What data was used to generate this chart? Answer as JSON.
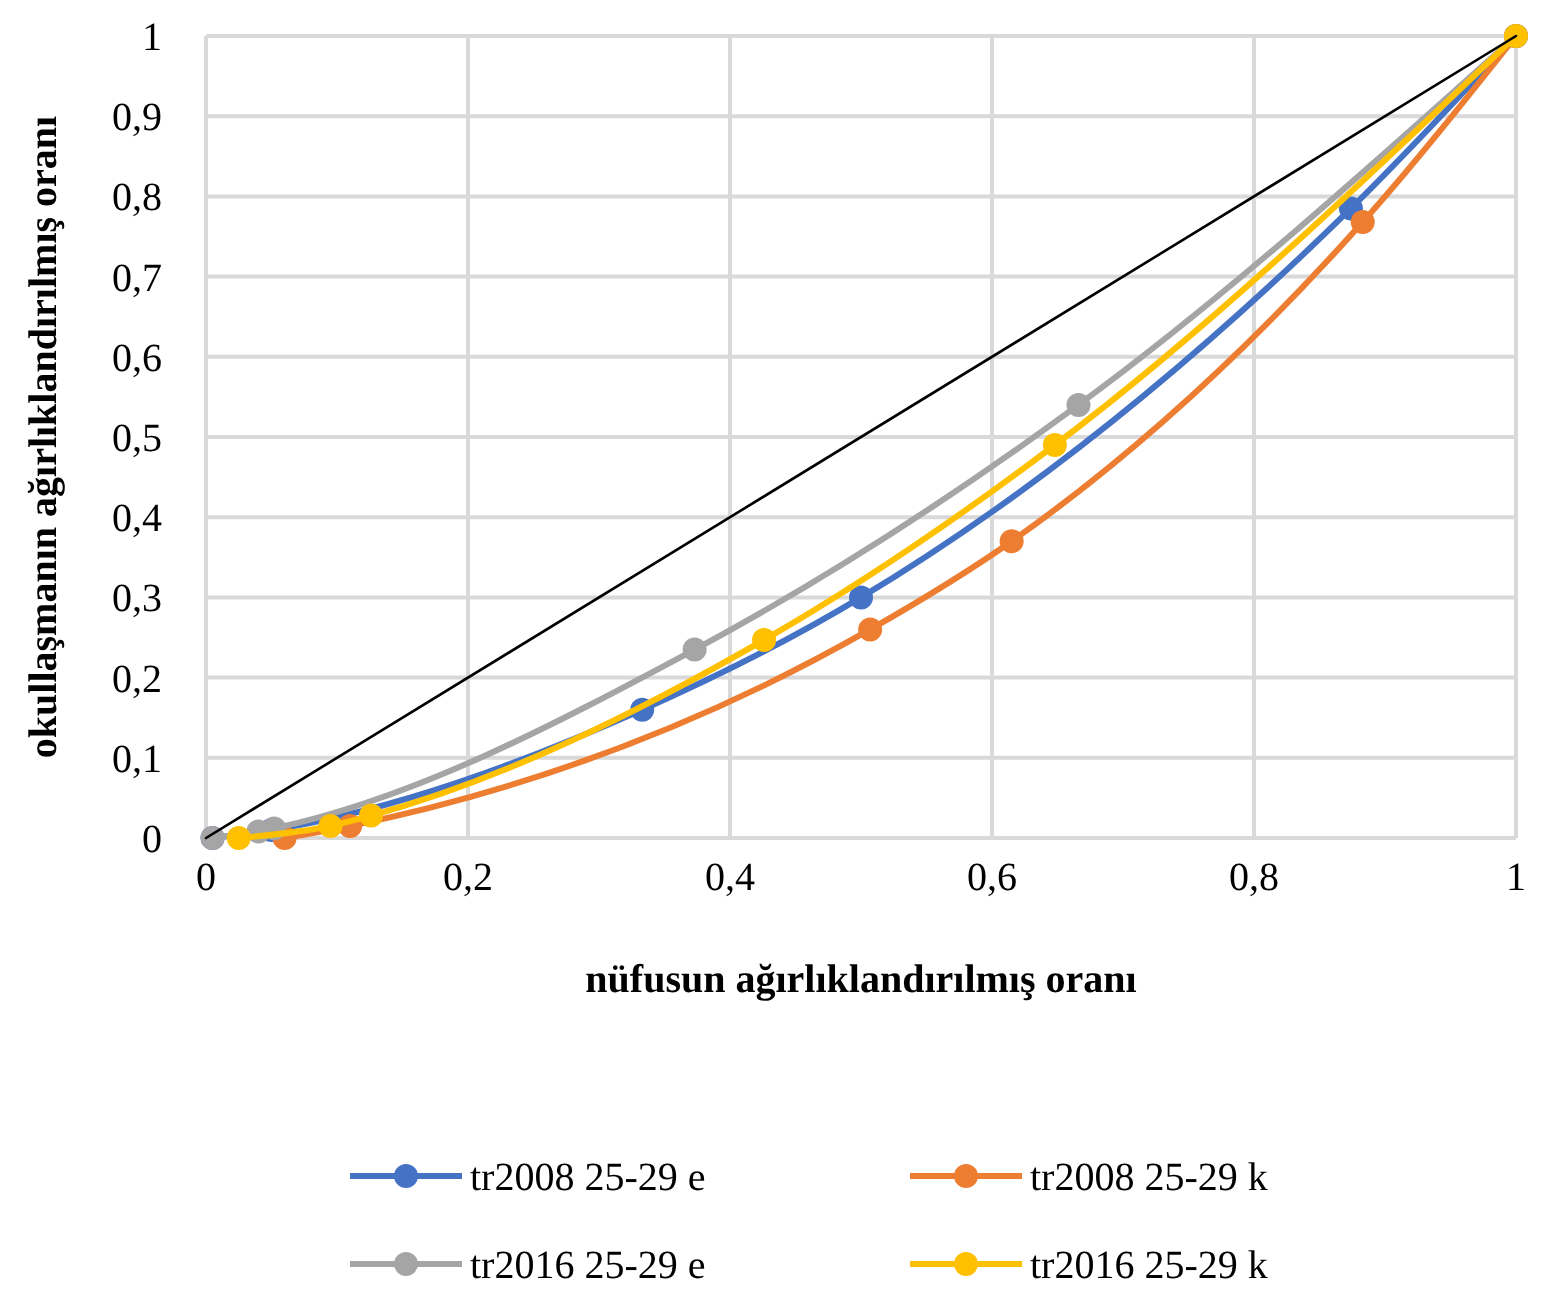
{
  "chart_data": {
    "type": "line",
    "xlabel": "nüfusun ağırlıklandırılmış oranı",
    "ylabel": "okullaşmanın ağırlıklandırılmış oranı",
    "xlim": [
      0,
      1
    ],
    "ylim": [
      0,
      1
    ],
    "xticks": [
      0,
      {
        "value": 0.2,
        "label": "0,2"
      },
      {
        "value": 0.4,
        "label": "0,4"
      },
      {
        "value": 0.6,
        "label": "0,6"
      },
      {
        "value": 0.8,
        "label": "0,8"
      },
      1
    ],
    "yticks": [
      0,
      {
        "value": 0.1,
        "label": "0,1"
      },
      {
        "value": 0.2,
        "label": "0,2"
      },
      {
        "value": 0.3,
        "label": "0,3"
      },
      {
        "value": 0.4,
        "label": "0,4"
      },
      {
        "value": 0.5,
        "label": "0,5"
      },
      {
        "value": 0.6,
        "label": "0,6"
      },
      {
        "value": 0.7,
        "label": "0,7"
      },
      {
        "value": 0.8,
        "label": "0,8"
      },
      {
        "value": 0.9,
        "label": "0,9"
      },
      1
    ],
    "grid": true,
    "legend": "bottom",
    "marker": "circle",
    "series": [
      {
        "name": "tr2008 25-29 e",
        "color": "#4472c4",
        "x": [
          0.005,
          0.05,
          0.333,
          0.5,
          0.874,
          1
        ],
        "values": [
          0,
          0.01,
          0.16,
          0.3,
          0.785,
          1
        ]
      },
      {
        "name": "tr2008 25-29 k",
        "color": "#ed7d31",
        "x": [
          0.06,
          0.11,
          0.507,
          0.615,
          0.883,
          1
        ],
        "values": [
          0,
          0.015,
          0.26,
          0.37,
          0.768,
          1
        ]
      },
      {
        "name": "tr2016 25-29 e",
        "color": "#a5a5a5",
        "x": [
          0.005,
          0.04,
          0.052,
          0.373,
          0.666,
          1
        ],
        "values": [
          0,
          0.008,
          0.012,
          0.235,
          0.54,
          1
        ]
      },
      {
        "name": "tr2016 25-29 k",
        "color": "#ffc000",
        "x": [
          0.025,
          0.095,
          0.126,
          0.426,
          0.648,
          1
        ],
        "values": [
          0,
          0.015,
          0.028,
          0.247,
          0.49,
          1
        ]
      },
      {
        "type": "line",
        "color": "#000000",
        "x": [
          0,
          1
        ],
        "values": [
          0,
          1
        ],
        "marker": "none"
      }
    ]
  }
}
